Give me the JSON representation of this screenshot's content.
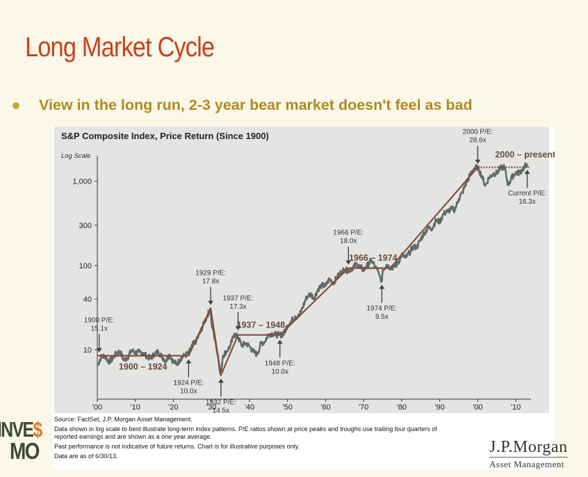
{
  "slide": {
    "title": "Long Market Cycle",
    "bullet": "View in the long run, 2-3 year bear market doesn't feel as bad"
  },
  "chart_data": {
    "type": "line",
    "title": "S&P Composite Index, Price Return (Since 1900)",
    "y_scale_label": "Log Scale",
    "yscale": "log",
    "ylim": [
      2.6,
      2000
    ],
    "xlim": [
      1900,
      2014
    ],
    "yticks": [
      {
        "value": 10,
        "label": "10"
      },
      {
        "value": 40,
        "label": "40"
      },
      {
        "value": 100,
        "label": "100"
      },
      {
        "value": 300,
        "label": "300"
      },
      {
        "value": 1000,
        "label": "1,000"
      }
    ],
    "xticks": [
      {
        "value": 1900,
        "label": "'00"
      },
      {
        "value": 1910,
        "label": "'10"
      },
      {
        "value": 1920,
        "label": "'20"
      },
      {
        "value": 1930,
        "label": "'30"
      },
      {
        "value": 1940,
        "label": "'40"
      },
      {
        "value": 1950,
        "label": "'50"
      },
      {
        "value": 1960,
        "label": "'60"
      },
      {
        "value": 1970,
        "label": "'70"
      },
      {
        "value": 1980,
        "label": "'80"
      },
      {
        "value": 1990,
        "label": "'90"
      },
      {
        "value": 2000,
        "label": "'00"
      },
      {
        "value": 2010,
        "label": "'10"
      }
    ],
    "grid": false,
    "index_series": {
      "x": [
        1900,
        1901,
        1902,
        1903,
        1904,
        1905,
        1906,
        1907,
        1908,
        1909,
        1910,
        1911,
        1912,
        1913,
        1914,
        1915,
        1916,
        1917,
        1918,
        1919,
        1920,
        1921,
        1922,
        1923,
        1924,
        1925,
        1926,
        1927,
        1928,
        1929,
        1929.8,
        1930,
        1931,
        1932.5,
        1933,
        1934,
        1935,
        1936,
        1937,
        1938,
        1939,
        1940,
        1941,
        1942,
        1943,
        1944,
        1945,
        1946,
        1947,
        1948,
        1949,
        1950,
        1951,
        1952,
        1953,
        1954,
        1955,
        1956,
        1957,
        1958,
        1959,
        1960,
        1961,
        1962,
        1963,
        1964,
        1965,
        1966,
        1967,
        1968,
        1969,
        1970,
        1971,
        1972,
        1973,
        1974.8,
        1975,
        1976,
        1977,
        1978,
        1979,
        1980,
        1981,
        1982,
        1983,
        1984,
        1985,
        1986,
        1987,
        1988,
        1989,
        1990,
        1991,
        1992,
        1993,
        1994,
        1995,
        1996,
        1997,
        1998,
        1999,
        2000,
        2001,
        2002,
        2003,
        2004,
        2005,
        2006,
        2007,
        2008,
        2009,
        2010,
        2011,
        2012,
        2013
      ],
      "y": [
        6.5,
        8.2,
        8.5,
        7.2,
        7.8,
        9.2,
        9.5,
        7.5,
        8.2,
        9.8,
        9.3,
        9.4,
        9.2,
        8.4,
        7.9,
        8.9,
        9.5,
        8.3,
        7.4,
        8.8,
        7.2,
        6.8,
        8.0,
        8.6,
        9.0,
        11.4,
        12.7,
        15.8,
        20.5,
        26.0,
        31.0,
        21.0,
        13.0,
        5.0,
        8.5,
        9.6,
        11.2,
        15.5,
        14.0,
        11.2,
        12.0,
        11.0,
        9.5,
        8.8,
        11.8,
        12.5,
        15.2,
        15.6,
        15.1,
        15.0,
        15.2,
        19.5,
        22.0,
        25.0,
        25.0,
        32.0,
        42.0,
        46.0,
        41.0,
        52.0,
        58.0,
        57.0,
        69.0,
        62.0,
        72.0,
        83.0,
        90.0,
        86.0,
        93.0,
        103.0,
        97.0,
        88.0,
        100.0,
        115.0,
        98.0,
        65.0,
        88.0,
        102.0,
        95.0,
        96.0,
        105.0,
        135.0,
        123.0,
        140.0,
        165.0,
        165.0,
        205.0,
        245.0,
        280.0,
        275.0,
        340.0,
        330.0,
        410.0,
        435.0,
        465.0,
        460.0,
        615.0,
        740.0,
        960.0,
        1180.0,
        1420.0,
        1460.0,
        1170.0,
        880.0,
        1110.0,
        1210.0,
        1250.0,
        1420.0,
        1480.0,
        900.0,
        1115.0,
        1260.0,
        1255.0,
        1420.0,
        1610.0
      ]
    },
    "trend_segments": [
      {
        "label": "1900 – 1924",
        "x": [
          1900,
          1924
        ],
        "y": [
          8.5,
          8.5
        ],
        "color": "#8a4a3a",
        "style": "solid"
      },
      {
        "label": "",
        "x": [
          1924,
          1929.8
        ],
        "y": [
          8.5,
          31.0
        ],
        "color": "#8a4a3a",
        "style": "solid"
      },
      {
        "label": "",
        "x": [
          1929.8,
          1932.5
        ],
        "y": [
          31.0,
          5.0
        ],
        "color": "#8a4a3a",
        "style": "solid"
      },
      {
        "label": "",
        "x": [
          1932.5,
          1937
        ],
        "y": [
          5.0,
          15.0
        ],
        "color": "#8a4a3a",
        "style": "solid"
      },
      {
        "label": "1937 – 1948",
        "x": [
          1937,
          1948
        ],
        "y": [
          15.0,
          15.0
        ],
        "color": "#8a4a3a",
        "style": "solid"
      },
      {
        "label": "",
        "x": [
          1948,
          1966
        ],
        "y": [
          15.0,
          93.0
        ],
        "color": "#8a4a3a",
        "style": "solid"
      },
      {
        "label": "1966 – 1974",
        "x": [
          1966,
          1977
        ],
        "y": [
          93.0,
          93.0
        ],
        "color": "#8a4a3a",
        "style": "solid"
      },
      {
        "label": "",
        "x": [
          1977,
          2000
        ],
        "y": [
          93.0,
          1460.0
        ],
        "color": "#8a4a3a",
        "style": "solid"
      },
      {
        "label": "2000 – present",
        "x": [
          2000,
          2013.5
        ],
        "y": [
          1460.0,
          1460.0
        ],
        "color": "#8a4a3a",
        "style": "dotted"
      }
    ],
    "period_labels": [
      {
        "text": "1900 – 1924",
        "x": 1912,
        "y": 6.4
      },
      {
        "text": "1937 – 1948",
        "x": 1943,
        "y": 20.0
      },
      {
        "text": "1966 – 1974",
        "x": 1972.5,
        "y": 125.0
      },
      {
        "text": "2000 – present",
        "x": 2012.5,
        "y": 2100.0
      }
    ],
    "annotations": [
      {
        "lines": [
          "1900 P/E:",
          "15.1x"
        ],
        "x": 1900.5,
        "y": 8.5,
        "dir": "up"
      },
      {
        "lines": [
          "1929 P/E:",
          "17.8x"
        ],
        "x": 1929.8,
        "y": 31.0,
        "dir": "up"
      },
      {
        "lines": [
          "1937 P/E:",
          "17.3x"
        ],
        "x": 1937,
        "y": 15.5,
        "dir": "up"
      },
      {
        "lines": [
          "1924 P/E:",
          "10.0x"
        ],
        "x": 1924,
        "y": 8.5,
        "dir": "down"
      },
      {
        "lines": [
          "1932 P/E:",
          "14.5x"
        ],
        "x": 1932.5,
        "y": 5.0,
        "dir": "down"
      },
      {
        "lines": [
          "1948 P/E:",
          "10.0x"
        ],
        "x": 1948,
        "y": 14.5,
        "dir": "down"
      },
      {
        "lines": [
          "1966 P/E:",
          "18.0x"
        ],
        "x": 1966,
        "y": 93.0,
        "dir": "up"
      },
      {
        "lines": [
          "1974 P/E:",
          "9.5x"
        ],
        "x": 1974.8,
        "y": 65.0,
        "dir": "down"
      },
      {
        "lines": [
          "2000 P/E:",
          "28.6x"
        ],
        "x": 2000,
        "y": 1460.0,
        "dir": "up"
      },
      {
        "lines": [
          "Current P/E:",
          "16.3x"
        ],
        "x": 2013,
        "y": 1500.0,
        "dir": "down"
      }
    ],
    "colors": {
      "index_line": "#5f6b68",
      "trend_line": "#8a4a3a",
      "period_label": "#6a4a3f",
      "annotation_text": "#333333",
      "arrow": "#444444"
    }
  },
  "notes": {
    "source": "Source: FactSet, J.P. Morgan Asset Management.",
    "log_note": "Data shown in log scale to best illustrate long-term index patterns. P/E ratios shown at price peaks and troughs use trailing four quarters of reported earnings and are shown as a one year average.",
    "disclaimer": "Past performance is not indicative of future returns. Chart is for illustrative purposes only.",
    "data_date": "Data are as of 6/30/13."
  },
  "branding": {
    "jpm_main": "J.P.Morgan",
    "jpm_sub": "Asset Management",
    "investmo_line1_a": "INVE",
    "investmo_line1_dollar": "$",
    "investmo_line2": "MO"
  }
}
